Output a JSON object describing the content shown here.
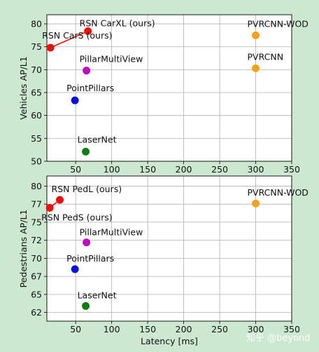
{
  "chart_data": [
    {
      "type": "scatter",
      "xlabel": "",
      "ylabel": "Vehicles AP/L1",
      "xlim": [
        10,
        350
      ],
      "ylim": [
        50,
        82
      ],
      "xticks": [
        "50",
        "100",
        "150",
        "200",
        "250",
        "300",
        "350"
      ],
      "yticks": [
        "50",
        "55",
        "60",
        "65",
        "70",
        "75",
        "80"
      ],
      "grid": true,
      "series": [
        {
          "label": "RSN CarXL (ours)",
          "x": 67,
          "y": 78.4,
          "color": "#e8120c"
        },
        {
          "label": "RSN CarS (ours)",
          "x": 15,
          "y": 74.8,
          "color": "#e8120c"
        },
        {
          "label": "PVRCNN-WOD",
          "x": 300,
          "y": 77.5,
          "color": "#f5a21b"
        },
        {
          "label": "PVRCNN",
          "x": 300,
          "y": 70.3,
          "color": "#f5a21b"
        },
        {
          "label": "PillarMultiView",
          "x": 65,
          "y": 69.8,
          "color": "#bf09bf"
        },
        {
          "label": "PointPillars",
          "x": 49,
          "y": 63.3,
          "color": "#0a12d8"
        },
        {
          "label": "LaserNet",
          "x": 64,
          "y": 52.1,
          "color": "#0f7d14"
        }
      ],
      "connector": {
        "from": "RSN CarS (ours)",
        "to": "RSN CarXL (ours)",
        "color": "#e8120c"
      }
    },
    {
      "type": "scatter",
      "xlabel": "Latency [ms]",
      "ylabel": "Pedestrians AP/L1",
      "xlim": [
        10,
        350
      ],
      "ylim": [
        61.3,
        81.4
      ],
      "xticks": [
        "50",
        "100",
        "150",
        "200",
        "250",
        "300",
        "350"
      ],
      "yticks": [
        "62",
        "65",
        "67",
        "70",
        "72",
        "75",
        "77",
        "80"
      ],
      "ytick_values": [
        62.5,
        65,
        67.5,
        70,
        72.5,
        75,
        77.5,
        80
      ],
      "grid": true,
      "series": [
        {
          "label": "RSN PedL (ours)",
          "x": 28,
          "y": 78.1,
          "color": "#e8120c"
        },
        {
          "label": "RSN PedS (ours)",
          "x": 14,
          "y": 77.0,
          "color": "#e8120c"
        },
        {
          "label": "PVRCNN-WOD",
          "x": 300,
          "y": 77.6,
          "color": "#f5a21b"
        },
        {
          "label": "PillarMultiView",
          "x": 65,
          "y": 72.2,
          "color": "#bf09bf"
        },
        {
          "label": "PointPillars",
          "x": 49,
          "y": 68.5,
          "color": "#0a12d8"
        },
        {
          "label": "LaserNet",
          "x": 64,
          "y": 63.4,
          "color": "#0f7d14"
        }
      ],
      "connector": {
        "from": "RSN PedS (ours)",
        "to": "RSN PedL (ours)",
        "color": "#e8120c"
      }
    }
  ],
  "watermark": "知乎 @beyond"
}
